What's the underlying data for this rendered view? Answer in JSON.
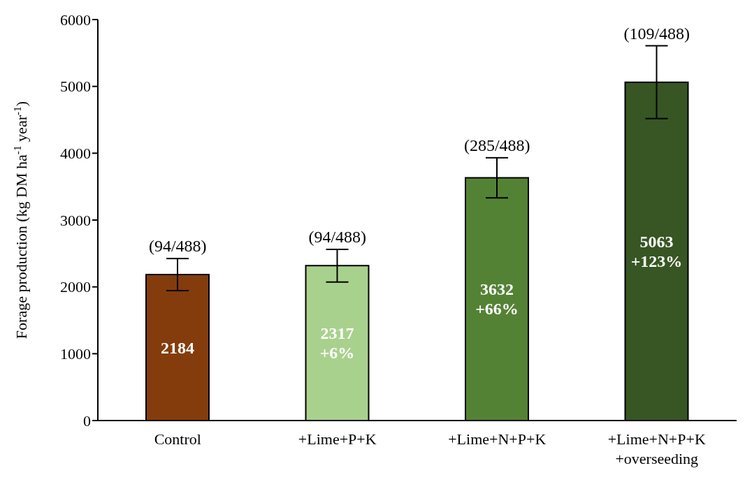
{
  "chart_data": {
    "type": "bar",
    "ylabel": "Forage production (kg DM ha$^{-1}$ year$^{-1}$)",
    "categories": [
      "Control",
      "+Lime+P+K",
      "+Lime+N+P+K",
      "+Lime+N+P+K\n+overseeding"
    ],
    "values": [
      2184,
      2317,
      3632,
      5063
    ],
    "colors": [
      "#843c0c",
      "#a9d18e",
      "#548235",
      "#375623"
    ],
    "errors": [
      240,
      245,
      300,
      545
    ],
    "value_labels": [
      "2184",
      "2317\n+6%",
      "3632\n+66%",
      "5063\n+123%"
    ],
    "annotations": [
      {
        "text": "(94/488)",
        "x": "Control",
        "y": 2424
      },
      {
        "text": "(94/488)",
        "x": "+Lime+P+K",
        "y": 2561
      },
      {
        "text": "(285/488)",
        "x": "+Lime+N+P+K",
        "y": 3930
      },
      {
        "text": "(109/488)",
        "x": "+Lime+N+P+K\n+overseeding",
        "y": 5603
      }
    ],
    "ylim": [
      0,
      6000
    ],
    "yticks": [
      0,
      1000,
      2000,
      3000,
      4000,
      5000,
      6000
    ],
    "grid": false,
    "legend": false
  }
}
